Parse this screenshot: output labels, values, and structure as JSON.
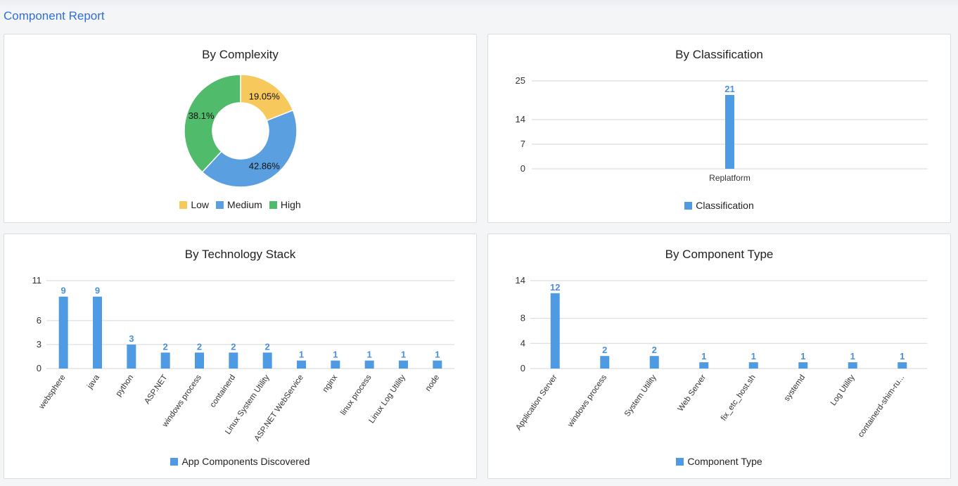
{
  "page": {
    "title": "Component Report"
  },
  "colors": {
    "bar": "#4f9be3",
    "low": "#f7c85c",
    "medium": "#5a9fe0",
    "high": "#4fbb6b",
    "grid": "#d6d6d6",
    "value_label": "#4a8fd8"
  },
  "chart_data": [
    {
      "id": "complexity",
      "type": "pie",
      "title": "By Complexity",
      "labels": [
        "Low",
        "Medium",
        "High"
      ],
      "values": [
        19.05,
        42.86,
        38.1
      ],
      "value_labels": [
        "19.05%",
        "42.86%",
        "38.1%"
      ],
      "legend_position": "bottom"
    },
    {
      "id": "classification",
      "type": "bar",
      "title": "By Classification",
      "categories": [
        "Replatform"
      ],
      "series": [
        {
          "name": "Classification",
          "values": [
            21
          ]
        }
      ],
      "ylim": [
        0,
        25
      ],
      "yticks": [
        0,
        7,
        14,
        25
      ],
      "grid": true,
      "legend_position": "bottom"
    },
    {
      "id": "tech",
      "type": "bar",
      "title": "By Technology Stack",
      "categories": [
        "websphere",
        "java",
        "python",
        "ASP.NET",
        "windows process",
        "containerd",
        "Linux System Utility",
        "ASP.NET WebService",
        "nginx",
        "linux process",
        "Linux Log Utility",
        "node"
      ],
      "series": [
        {
          "name": "App Components Discovered",
          "values": [
            9,
            9,
            3,
            2,
            2,
            2,
            2,
            1,
            1,
            1,
            1,
            1
          ]
        }
      ],
      "ylim": [
        0,
        11
      ],
      "yticks": [
        0,
        3,
        6,
        11
      ],
      "grid": true,
      "legend_position": "bottom"
    },
    {
      "id": "comptype",
      "type": "bar",
      "title": "By Component Type",
      "categories": [
        "Application Server",
        "windows process",
        "System Utility",
        "Web Server",
        "fix_etc_host.sh",
        "systemd",
        "Log Utility",
        "containerd-shim-ru..."
      ],
      "series": [
        {
          "name": "Component Type",
          "values": [
            12,
            2,
            2,
            1,
            1,
            1,
            1,
            1
          ]
        }
      ],
      "ylim": [
        0,
        14
      ],
      "yticks": [
        0,
        4,
        8,
        14
      ],
      "grid": true,
      "legend_position": "bottom"
    }
  ]
}
